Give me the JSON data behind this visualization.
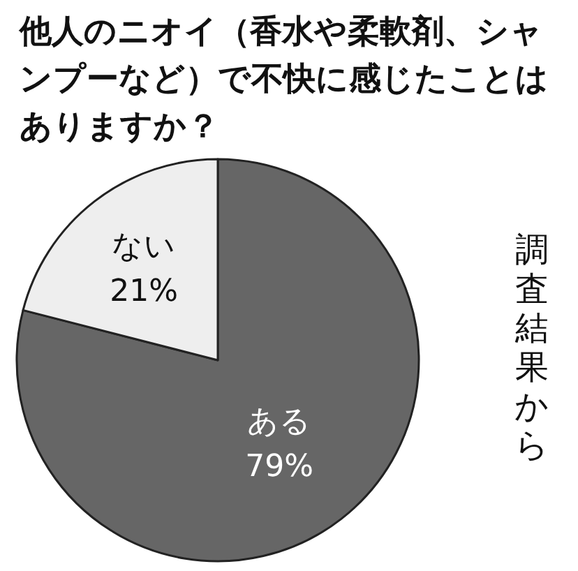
{
  "chart_data": {
    "type": "pie",
    "title": "他人のニオイ（香水や柔軟剤、シャンプーなど）で不快に感じたことはありますか？",
    "categories": [
      "ある",
      "ない"
    ],
    "values": [
      79,
      21
    ],
    "colors": [
      "#666666",
      "#eeeeee"
    ],
    "value_labels": [
      "79%",
      "21%"
    ],
    "annotations": [
      "調査結果から"
    ]
  }
}
